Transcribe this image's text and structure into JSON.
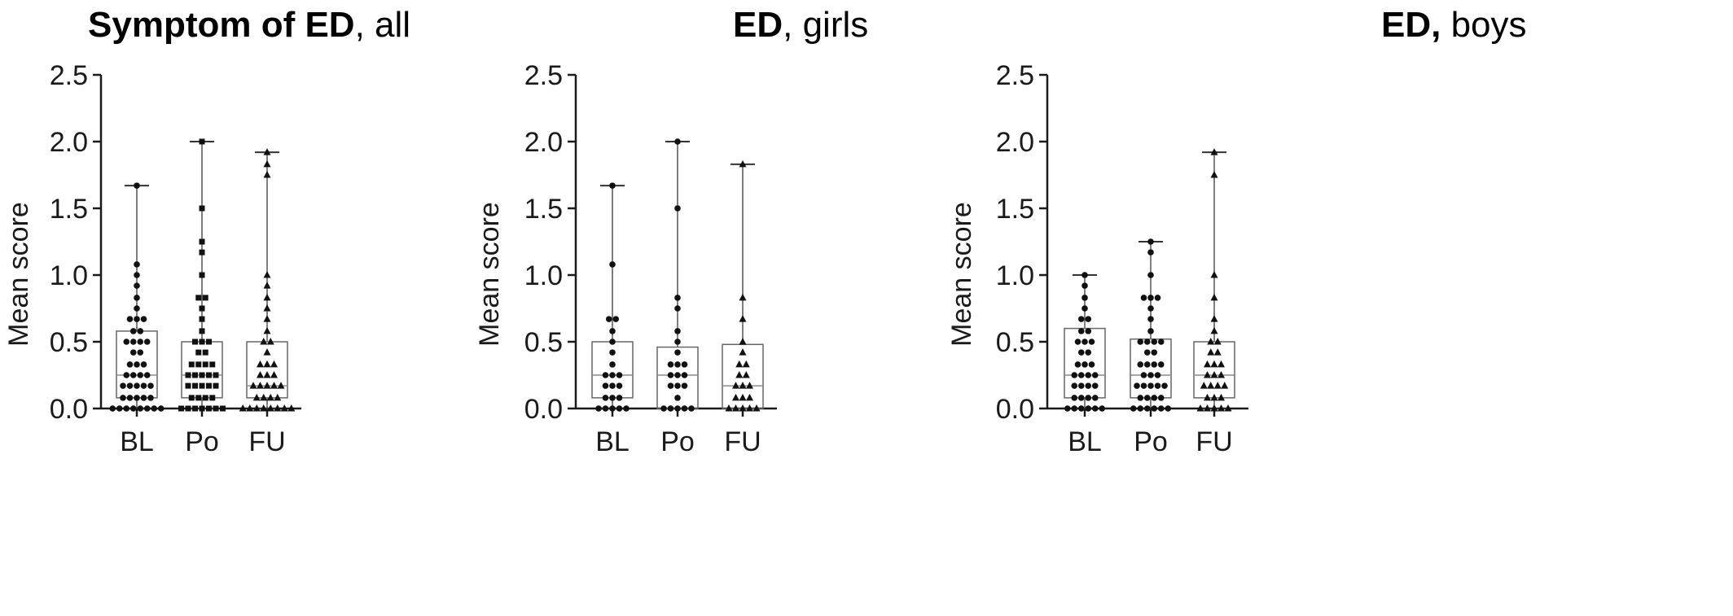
{
  "chart_data": [
    {
      "type": "box",
      "title_bold": "Symptom of ED",
      "title_rest": ", all",
      "ylabel": "Mean score",
      "ylim": [
        0,
        2.5
      ],
      "yticks": [
        "0.0",
        "0.5",
        "1.0",
        "1.5",
        "2.0",
        "2.5"
      ],
      "categories": [
        "BL",
        "Po",
        "FU"
      ],
      "boxes": [
        {
          "category": "BL",
          "min": 0.0,
          "q1": 0.08,
          "median": 0.25,
          "q3": 0.58,
          "max": 1.67,
          "marker": "circle",
          "points": [
            0,
            0,
            0,
            0,
            0,
            0,
            0,
            0,
            0.08,
            0.08,
            0.08,
            0.08,
            0.08,
            0.17,
            0.17,
            0.17,
            0.17,
            0.17,
            0.25,
            0.25,
            0.25,
            0.25,
            0.33,
            0.33,
            0.33,
            0.42,
            0.42,
            0.5,
            0.5,
            0.5,
            0.5,
            0.58,
            0.58,
            0.67,
            0.67,
            0.67,
            0.75,
            0.83,
            0.92,
            1.0,
            1.08,
            1.67
          ]
        },
        {
          "category": "Po",
          "min": 0.0,
          "q1": 0.08,
          "median": 0.25,
          "q3": 0.5,
          "max": 2.0,
          "marker": "square",
          "points": [
            0,
            0,
            0,
            0,
            0,
            0,
            0,
            0.08,
            0.08,
            0.08,
            0.08,
            0.17,
            0.17,
            0.17,
            0.17,
            0.17,
            0.25,
            0.25,
            0.25,
            0.25,
            0.25,
            0.33,
            0.33,
            0.33,
            0.33,
            0.42,
            0.42,
            0.5,
            0.5,
            0.5,
            0.58,
            0.67,
            0.75,
            0.83,
            0.83,
            1.0,
            1.17,
            1.25,
            1.5,
            2.0
          ]
        },
        {
          "category": "FU",
          "min": 0.0,
          "q1": 0.08,
          "median": 0.17,
          "q3": 0.5,
          "max": 1.92,
          "marker": "triangle",
          "points": [
            0,
            0,
            0,
            0,
            0,
            0,
            0,
            0,
            0.08,
            0.08,
            0.08,
            0.08,
            0.17,
            0.17,
            0.17,
            0.17,
            0.17,
            0.25,
            0.25,
            0.25,
            0.33,
            0.33,
            0.33,
            0.42,
            0.5,
            0.5,
            0.58,
            0.67,
            0.75,
            0.83,
            0.92,
            1.0,
            1.75,
            1.83,
            1.92
          ]
        }
      ]
    },
    {
      "type": "box",
      "title_bold": "ED",
      "title_rest": ", girls",
      "ylabel": "Mean score",
      "ylim": [
        0,
        2.5
      ],
      "yticks": [
        "0.0",
        "0.5",
        "1.0",
        "1.5",
        "2.0",
        "2.5"
      ],
      "categories": [
        "BL",
        "Po",
        "FU"
      ],
      "boxes": [
        {
          "category": "BL",
          "min": 0.0,
          "q1": 0.08,
          "median": 0.25,
          "q3": 0.5,
          "max": 1.67,
          "marker": "circle",
          "points": [
            0,
            0,
            0,
            0,
            0,
            0.08,
            0.08,
            0.08,
            0.17,
            0.17,
            0.17,
            0.25,
            0.25,
            0.25,
            0.33,
            0.42,
            0.5,
            0.58,
            0.67,
            0.67,
            1.08,
            1.67
          ]
        },
        {
          "category": "Po",
          "min": 0.0,
          "q1": 0.0,
          "median": 0.25,
          "q3": 0.46,
          "max": 2.0,
          "marker": "circle",
          "points": [
            0,
            0,
            0,
            0,
            0,
            0.08,
            0.17,
            0.17,
            0.17,
            0.25,
            0.25,
            0.25,
            0.33,
            0.33,
            0.33,
            0.42,
            0.5,
            0.58,
            0.75,
            0.83,
            1.5,
            2.0
          ]
        },
        {
          "category": "FU",
          "min": 0.0,
          "q1": 0.0,
          "median": 0.17,
          "q3": 0.48,
          "max": 1.83,
          "marker": "triangle",
          "points": [
            0,
            0,
            0,
            0,
            0,
            0.08,
            0.08,
            0.08,
            0.17,
            0.17,
            0.17,
            0.25,
            0.25,
            0.33,
            0.33,
            0.42,
            0.5,
            0.67,
            0.83,
            1.83
          ]
        }
      ]
    },
    {
      "type": "box",
      "title_bold": "ED,",
      "title_rest": " boys",
      "ylabel": "Mean score",
      "ylim": [
        0,
        2.5
      ],
      "yticks": [
        "0.0",
        "0.5",
        "1.0",
        "1.5",
        "2.0",
        "2.5"
      ],
      "categories": [
        "BL",
        "Po",
        "FU"
      ],
      "boxes": [
        {
          "category": "BL",
          "min": 0.0,
          "q1": 0.08,
          "median": 0.25,
          "q3": 0.6,
          "max": 1.0,
          "marker": "circle",
          "points": [
            0,
            0,
            0,
            0,
            0,
            0,
            0.08,
            0.08,
            0.08,
            0.08,
            0.17,
            0.17,
            0.17,
            0.17,
            0.25,
            0.25,
            0.25,
            0.25,
            0.33,
            0.33,
            0.33,
            0.42,
            0.42,
            0.5,
            0.5,
            0.5,
            0.58,
            0.58,
            0.67,
            0.67,
            0.75,
            0.83,
            0.92,
            1.0
          ]
        },
        {
          "category": "Po",
          "min": 0.0,
          "q1": 0.08,
          "median": 0.25,
          "q3": 0.52,
          "max": 1.25,
          "marker": "circle",
          "points": [
            0,
            0,
            0,
            0,
            0,
            0,
            0.08,
            0.08,
            0.08,
            0.08,
            0.17,
            0.17,
            0.17,
            0.17,
            0.17,
            0.25,
            0.25,
            0.25,
            0.33,
            0.33,
            0.33,
            0.33,
            0.42,
            0.42,
            0.5,
            0.5,
            0.5,
            0.5,
            0.58,
            0.67,
            0.75,
            0.83,
            0.83,
            0.83,
            1.0,
            1.17,
            1.25
          ]
        },
        {
          "category": "FU",
          "min": 0.0,
          "q1": 0.08,
          "median": 0.25,
          "q3": 0.5,
          "max": 1.92,
          "marker": "triangle",
          "points": [
            0,
            0,
            0,
            0,
            0,
            0.08,
            0.08,
            0.08,
            0.17,
            0.17,
            0.17,
            0.17,
            0.25,
            0.25,
            0.25,
            0.33,
            0.33,
            0.33,
            0.42,
            0.42,
            0.5,
            0.5,
            0.58,
            0.67,
            0.83,
            1.0,
            1.75,
            1.92
          ]
        }
      ]
    }
  ]
}
